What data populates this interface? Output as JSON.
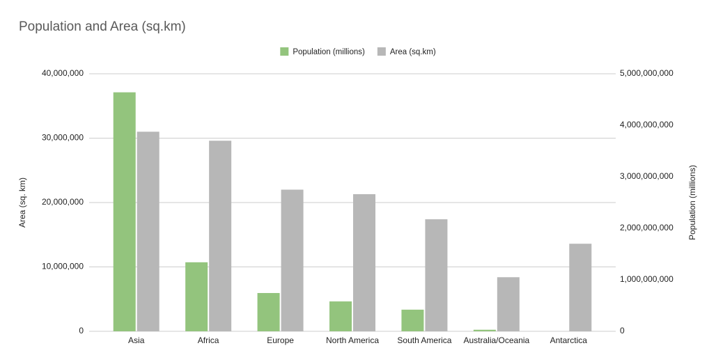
{
  "chart_data": {
    "type": "bar",
    "title": "Population and Area (sq.km)",
    "y_label": "Area (sq. km)",
    "y2_label": "Population (millions)",
    "categories": [
      "Asia",
      "Africa",
      "Europe",
      "North America",
      "South America",
      "Australia/Oceania",
      "Antarctica"
    ],
    "series": [
      {
        "name": "Population (millions)",
        "color": "#93c47d",
        "axis": "y2",
        "values": [
          4640000000,
          1340000000,
          743000000,
          580000000,
          420000000,
          30000000,
          0
        ]
      },
      {
        "name": "Area (sq.km)",
        "color": "#b7b7b7",
        "values": [
          31000000,
          29600000,
          22000000,
          21300000,
          17400000,
          8400000,
          13600000
        ]
      }
    ],
    "ylim": [
      0,
      40000000
    ],
    "yticks": [
      0,
      {
        "value": 10000000,
        "label": "10,000,000"
      },
      {
        "value": 20000000,
        "label": "20,000,000"
      },
      {
        "value": 30000000,
        "label": "30,000,000"
      },
      {
        "value": 40000000,
        "label": "40,000,000"
      }
    ],
    "y2lim": [
      0,
      5000000000
    ],
    "y2ticks": [
      0,
      {
        "value": 1000000000,
        "label": "1,000,000,000"
      },
      {
        "value": 2000000000,
        "label": "2,000,000,000"
      },
      {
        "value": 3000000000,
        "label": "3,000,000,000"
      },
      {
        "value": 4000000000,
        "label": "4,000,000,000"
      },
      {
        "value": 5000000000,
        "label": "5,000,000,000"
      }
    ],
    "grid": true,
    "legend": "top"
  }
}
